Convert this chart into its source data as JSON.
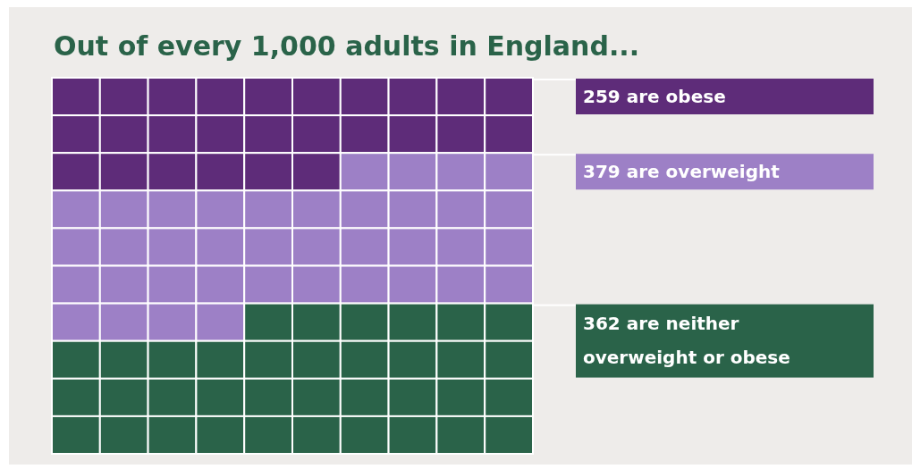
{
  "chart_data": {
    "type": "other",
    "title": "Out of every 1,000 adults in England...",
    "categories": [
      "are obese",
      "are overweight",
      "are neither overweight or obese"
    ],
    "values": [
      259,
      379,
      362
    ],
    "value_labels": [
      "259",
      "379",
      "362"
    ],
    "colors": [
      "#5e2c79",
      "#9d80c6",
      "#2a6349"
    ]
  }
}
